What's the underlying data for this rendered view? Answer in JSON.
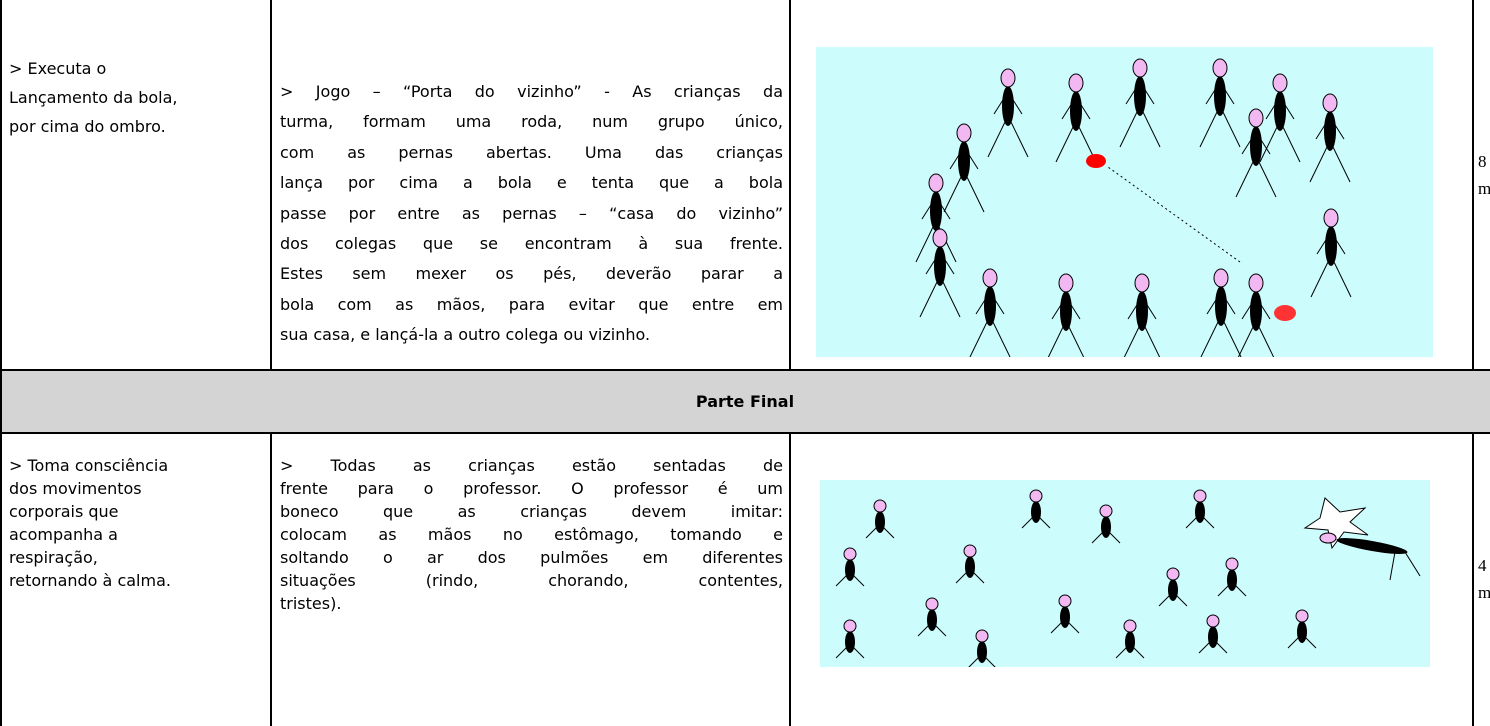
{
  "row_1": {
    "objective": [
      "> Executa o",
      "Lançamento da bola,",
      "por cima do ombro."
    ],
    "description": [
      "> Jogo – “Porta do vizinho” - As crianças da",
      "turma, formam uma roda, num grupo único,",
      "com as pernas abertas. Uma das crianças",
      "lança por cima a bola e tenta que a bola",
      "passe por entre as pernas – “casa do vizinho”",
      "dos colegas que se encontram à sua frente.",
      "Estes sem mexer os pés, deverão parar a",
      "bola com as mãos, para evitar que entre em",
      "sua casa, e lançá-la a outro colega ou vizinho."
    ],
    "time": [
      "8",
      "m"
    ]
  },
  "section_title": "Parte Final",
  "row_2": {
    "objective": [
      "> Toma consciência",
      "dos movimentos",
      "corporais que",
      "acompanha a",
      "respiração,",
      "retornando à calma."
    ],
    "description": [
      "> Todas as crianças estão sentadas de",
      "frente para o professor. O professor é um",
      "boneco que as crianças devem imitar:",
      "colocam as mãos no estômago, tomando e",
      "soltando o ar dos pulmões em diferentes",
      "situações (rindo, chorando, contentes,",
      "tristes)."
    ],
    "time": [
      "4",
      "m"
    ]
  }
}
